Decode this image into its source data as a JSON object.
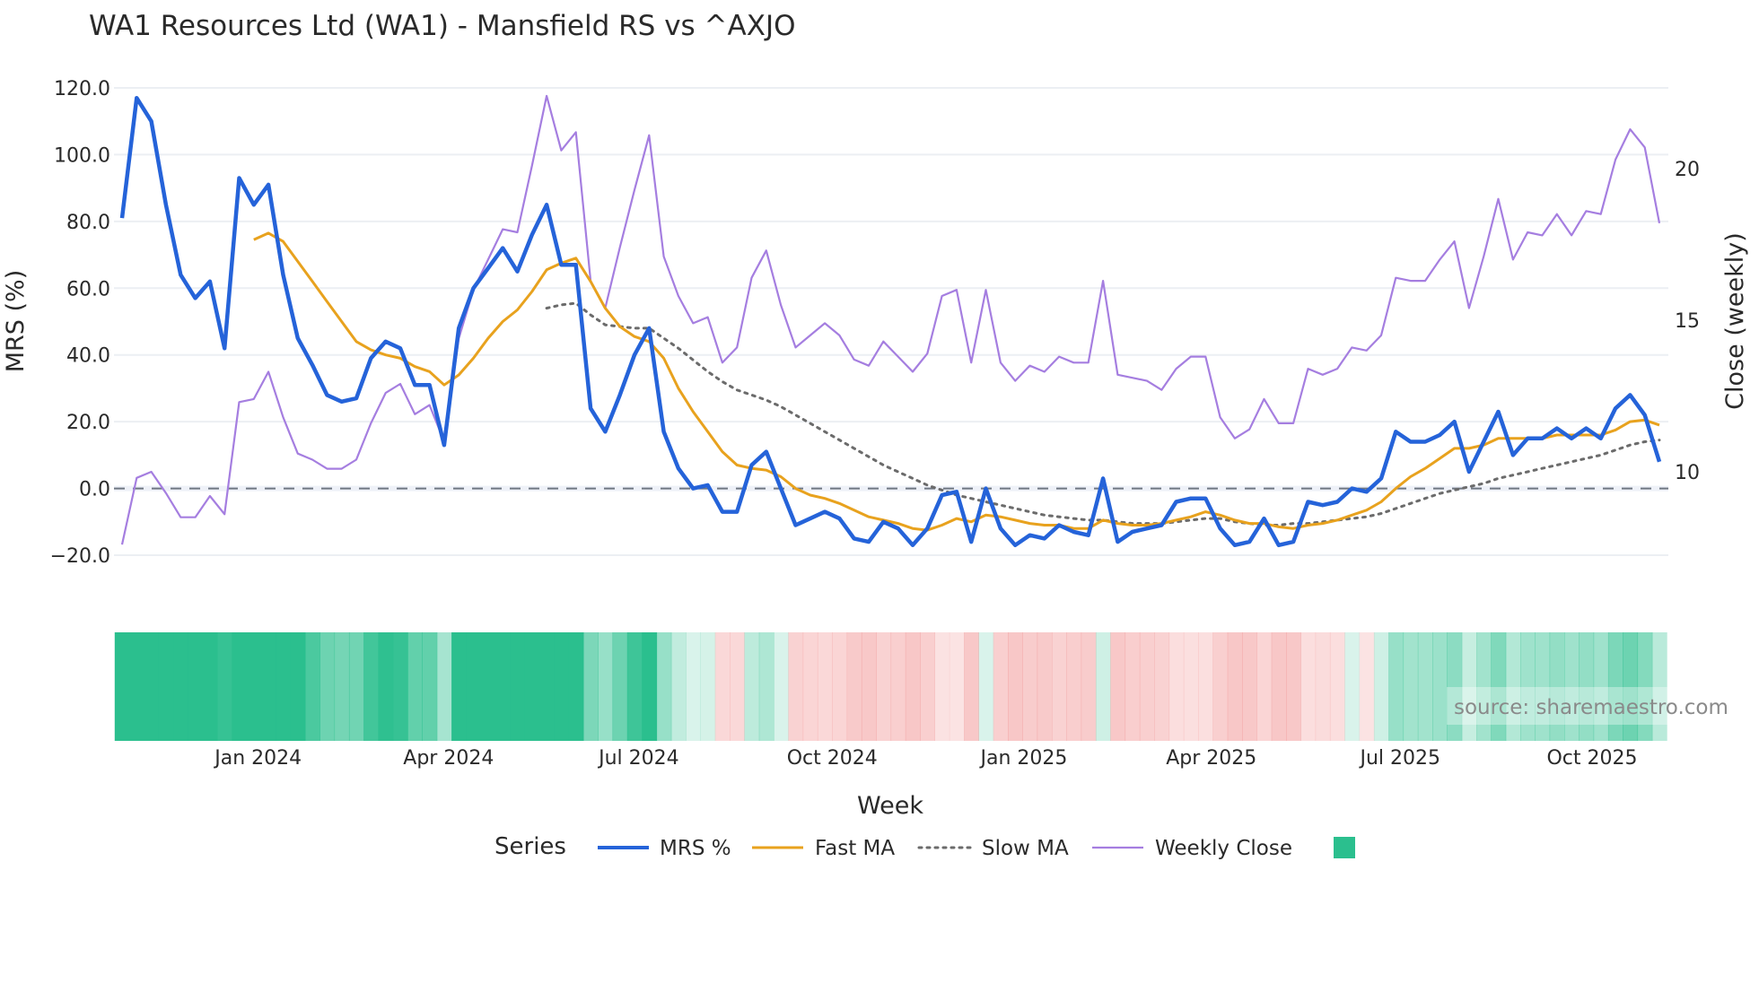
{
  "chart_data": {
    "type": "line",
    "title": "WA1 Resources Ltd (WA1) - Mansfield RS vs ^AXJO",
    "xlabel": "Week",
    "ylabel_left": "MRS (%)",
    "ylabel_right": "Close (weekly)",
    "ylim_left": [
      -20,
      120
    ],
    "yticks_left": [
      "120.0",
      "100.0",
      "80.0",
      "60.0",
      "40.0",
      "20.0",
      "0.0",
      "−20.0"
    ],
    "ytick_values_left": [
      120,
      100,
      80,
      60,
      40,
      20,
      0,
      -20
    ],
    "yticks_right": [
      "20",
      "15",
      "10"
    ],
    "ytick_values_right": [
      20,
      15,
      10
    ],
    "x_range_weeks": 105,
    "xticks": [
      {
        "label": "Jan 2024",
        "week": 9.3
      },
      {
        "label": "Apr 2024",
        "week": 22.3
      },
      {
        "label": "Jul 2024",
        "week": 35.3
      },
      {
        "label": "Oct 2024",
        "week": 48.5
      },
      {
        "label": "Jan 2025",
        "week": 61.6
      },
      {
        "label": "Apr 2025",
        "week": 74.4
      },
      {
        "label": "Jul 2025",
        "week": 87.3
      },
      {
        "label": "Oct 2025",
        "week": 100.4
      }
    ],
    "grid": true,
    "zero_line": 0,
    "legend_title": "Series",
    "legend_position": "bottom",
    "series": [
      {
        "name": "MRS %",
        "axis": "left",
        "color": "#2563d9",
        "style": "solid-thick",
        "start_index": 0,
        "values": [
          81,
          117,
          110,
          85,
          64,
          57,
          62,
          42,
          93,
          85,
          91,
          64,
          45,
          37,
          28,
          26,
          27,
          39,
          44,
          42,
          31,
          31,
          13,
          48,
          60,
          66,
          72,
          65,
          76,
          85,
          67,
          67,
          24,
          17,
          28,
          40,
          48,
          17,
          6,
          0,
          1,
          -7,
          -7,
          7,
          11,
          0,
          -11,
          -9,
          -7,
          -9,
          -15,
          -16,
          -10,
          -12,
          -17,
          -12,
          -2,
          -1,
          -16,
          0,
          -12,
          -17,
          -14,
          -15,
          -11,
          -13,
          -14,
          3,
          -16,
          -13,
          -12,
          -11,
          -4,
          -3,
          -3,
          -12,
          -17,
          -16,
          -9,
          -17,
          -16,
          -4,
          -5,
          -4,
          0,
          -1,
          3,
          17,
          14,
          14,
          16,
          20,
          5,
          14,
          23,
          10,
          15,
          15,
          18,
          15,
          18,
          15,
          24,
          28,
          22,
          8
        ]
      },
      {
        "name": "Fast MA",
        "axis": "left",
        "color": "#e8a21e",
        "style": "solid",
        "start_index": 9,
        "values": [
          74.5,
          76.5,
          74,
          68,
          62,
          56,
          50,
          44,
          41.5,
          40,
          39,
          36.5,
          35,
          31,
          34,
          39,
          45,
          50,
          53.5,
          59,
          65.5,
          67.5,
          69,
          62,
          54,
          48.5,
          45.5,
          44,
          39,
          30,
          23,
          17,
          11,
          7,
          6,
          5.5,
          3.5,
          0,
          -2,
          -3,
          -4.5,
          -6.5,
          -8.5,
          -9.5,
          -10.5,
          -12,
          -12.5,
          -11,
          -9,
          -10,
          -8,
          -8.5,
          -9.5,
          -10.5,
          -11,
          -11,
          -12,
          -12,
          -9.5,
          -10.5,
          -11,
          -11,
          -10.5,
          -9.5,
          -8.5,
          -7,
          -8,
          -9.5,
          -10.5,
          -10.5,
          -11.5,
          -12,
          -11,
          -10.5,
          -9.5,
          -8,
          -6.5,
          -4,
          0,
          3.5,
          6,
          9,
          12,
          12,
          13,
          15,
          15,
          15,
          15,
          16,
          16,
          16,
          16,
          17.5,
          20,
          20.5,
          19
        ]
      },
      {
        "name": "Slow MA",
        "axis": "left",
        "color": "#6b6b6b",
        "style": "dotted",
        "start_index": 29,
        "values": [
          54,
          55,
          55.5,
          52,
          49,
          48.5,
          48,
          48,
          45,
          42,
          38.5,
          35,
          32,
          29.5,
          28,
          26.5,
          24.5,
          22,
          19.5,
          17,
          14.5,
          12,
          9.5,
          7,
          5,
          3,
          1,
          -0.5,
          -2,
          -3,
          -4,
          -5,
          -6,
          -7,
          -8,
          -8.5,
          -9,
          -9.5,
          -9.5,
          -10,
          -10.5,
          -10.5,
          -10.5,
          -10,
          -9.5,
          -9,
          -9,
          -10,
          -10.5,
          -11,
          -11,
          -10.5,
          -10.5,
          -10,
          -9.5,
          -9,
          -8.5,
          -7.5,
          -6,
          -4.5,
          -3,
          -1.5,
          -0.5,
          0.5,
          1.5,
          3,
          4,
          5,
          6,
          7,
          8,
          9,
          10,
          11.5,
          13,
          14,
          14.5
        ]
      },
      {
        "name": "Weekly Close",
        "axis": "right",
        "color": "#a57ee0",
        "style": "solid-thin",
        "start_index": 0,
        "values": [
          7.6,
          9.8,
          10.0,
          9.3,
          8.5,
          8.5,
          9.2,
          8.6,
          12.3,
          12.4,
          13.3,
          11.8,
          10.6,
          10.4,
          10.1,
          10.1,
          10.4,
          11.6,
          12.6,
          12.9,
          11.9,
          12.2,
          11.0,
          14.4,
          16.0,
          17.0,
          18.0,
          17.9,
          20.1,
          22.4,
          20.6,
          21.2,
          16.3,
          15.4,
          17.4,
          19.3,
          21.1,
          17.1,
          15.8,
          14.9,
          15.1,
          13.6,
          14.1,
          16.4,
          17.3,
          15.5,
          14.1,
          14.5,
          14.9,
          14.5,
          13.7,
          13.5,
          14.3,
          13.8,
          13.3,
          13.9,
          15.8,
          16.0,
          13.6,
          16.0,
          13.6,
          13.0,
          13.5,
          13.3,
          13.8,
          13.6,
          13.6,
          16.3,
          13.2,
          13.1,
          13.0,
          12.7,
          13.4,
          13.8,
          13.8,
          11.8,
          11.1,
          11.4,
          12.4,
          11.6,
          11.6,
          13.4,
          13.2,
          13.4,
          14.1,
          14.0,
          14.5,
          16.4,
          16.3,
          16.3,
          17.0,
          17.6,
          15.4,
          17.1,
          19.0,
          17.0,
          17.9,
          17.8,
          18.5,
          17.8,
          18.6,
          18.5,
          20.3,
          21.3,
          20.7,
          18.2
        ]
      }
    ],
    "heatmap": {
      "source_series": "MRS %",
      "positive_color": "#2bbf8e",
      "negative_color": "#f08a8a"
    },
    "heatmap_legend_color": "#2bbf8e"
  },
  "watermark": "source: sharemaestro.com"
}
